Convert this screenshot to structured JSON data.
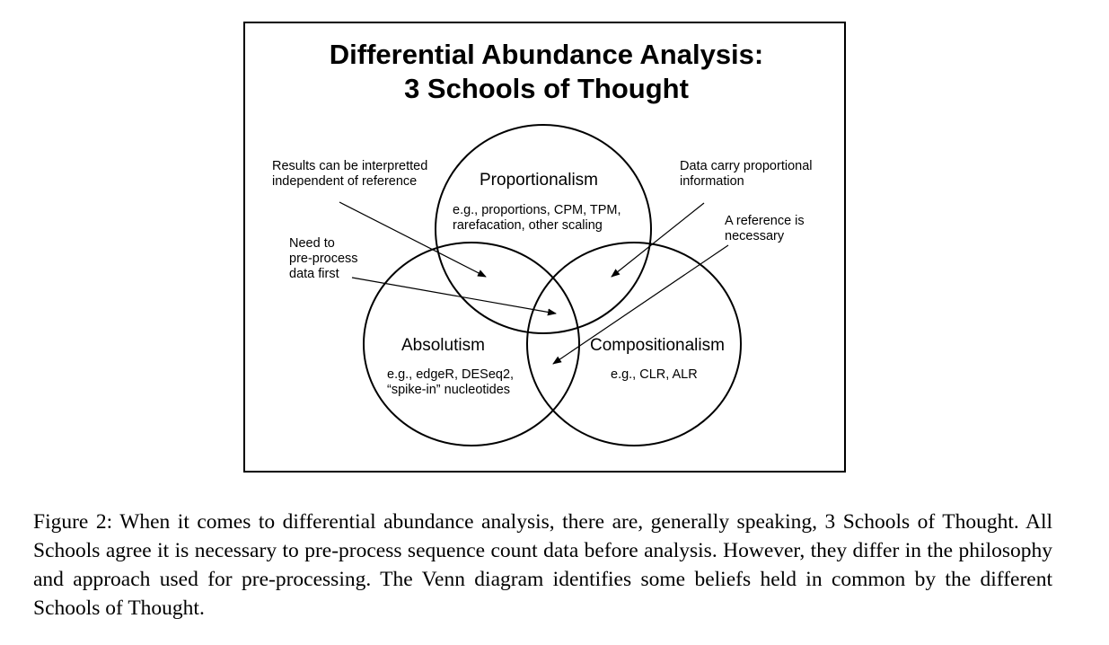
{
  "figure": {
    "title_line1": "Differential Abundance Analysis:",
    "title_line2": "3 Schools of Thought",
    "circles": {
      "proportionalism": {
        "name": "Proportionalism",
        "example_line1": "e.g., proportions, CPM, TPM,",
        "example_line2": "rarefacation, other scaling"
      },
      "absolutism": {
        "name": "Absolutism",
        "example_line1": "e.g., edgeR, DESeq2,",
        "example_line2": "“spike-in” nucleotides"
      },
      "compositionalism": {
        "name": "Compositionalism",
        "example_line1": "e.g., CLR, ALR"
      }
    },
    "annotations": {
      "results": {
        "line1": "Results can be interpretted",
        "line2": "independent of reference"
      },
      "preprocess": {
        "line1": "Need to",
        "line2": "pre-process",
        "line3": "data first"
      },
      "proportional_info": {
        "line1": "Data carry proportional",
        "line2": "information"
      },
      "reference": {
        "line1": "A reference is",
        "line2": "necessary"
      }
    }
  },
  "caption": "Figure 2: When it comes to differential abundance analysis, there are, generally speaking, 3 Schools of Thought. All Schools agree it is necessary to pre-process sequence count data before analysis. However, they differ in the philosophy and approach used for pre-processing. The Venn diagram identifies some beliefs held in common by the different Schools of Thought."
}
